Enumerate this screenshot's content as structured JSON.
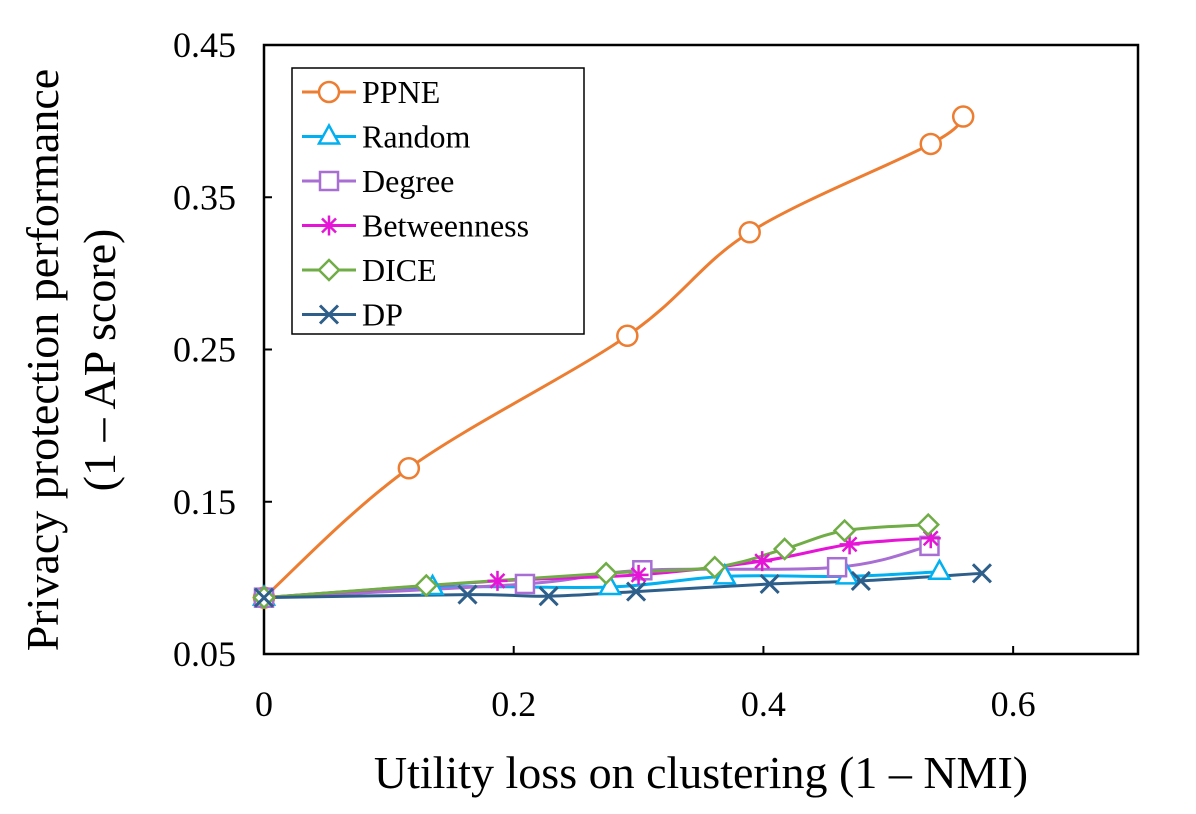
{
  "chart_data": {
    "type": "line",
    "title": "",
    "xlabel": "Utility loss on clustering (1 – NMI)",
    "ylabel_line1": "Privacy protection performance",
    "ylabel_line2": "(1 – AP score)",
    "xlim": [
      0,
      0.7
    ],
    "ylim": [
      0.05,
      0.45
    ],
    "xticks": [
      0,
      0.2,
      0.4,
      0.6
    ],
    "xtick_labels": [
      "0",
      "0.2",
      "0.4",
      "0.6"
    ],
    "yticks": [
      0.05,
      0.15,
      0.25,
      0.35,
      0.45
    ],
    "ytick_labels": [
      "0.05",
      "0.15",
      "0.25",
      "0.35",
      "0.45"
    ],
    "legend_position": "top-left",
    "grid": false,
    "series": [
      {
        "name": "PPNE",
        "color": "#ED7D31",
        "marker": "circle",
        "x": [
          0,
          0.116,
          0.291,
          0.389,
          0.534,
          0.56
        ],
        "y": [
          0.087,
          0.172,
          0.259,
          0.327,
          0.385,
          0.403
        ]
      },
      {
        "name": "Random",
        "color": "#00B0F0",
        "marker": "triangle",
        "x": [
          0,
          0.135,
          0.277,
          0.369,
          0.467,
          0.541
        ],
        "y": [
          0.087,
          0.094,
          0.094,
          0.101,
          0.101,
          0.104
        ]
      },
      {
        "name": "Degree",
        "color": "#A86ED4",
        "marker": "square",
        "x": [
          0,
          0.209,
          0.303,
          0.459,
          0.533
        ],
        "y": [
          0.087,
          0.096,
          0.105,
          0.107,
          0.121
        ]
      },
      {
        "name": "Betweenness",
        "color": "#E614D6",
        "marker": "star",
        "x": [
          0,
          0.187,
          0.3,
          0.399,
          0.469,
          0.534
        ],
        "y": [
          0.087,
          0.098,
          0.102,
          0.111,
          0.122,
          0.126
        ]
      },
      {
        "name": "DICE",
        "color": "#70AD47",
        "marker": "diamond",
        "x": [
          0,
          0.13,
          0.274,
          0.361,
          0.417,
          0.465,
          0.532
        ],
        "y": [
          0.087,
          0.095,
          0.103,
          0.107,
          0.119,
          0.131,
          0.135
        ]
      },
      {
        "name": "DP",
        "color": "#2E5F8A",
        "marker": "x",
        "x": [
          0,
          0.163,
          0.228,
          0.298,
          0.405,
          0.478,
          0.575
        ],
        "y": [
          0.087,
          0.089,
          0.088,
          0.091,
          0.096,
          0.098,
          0.103
        ]
      }
    ]
  }
}
